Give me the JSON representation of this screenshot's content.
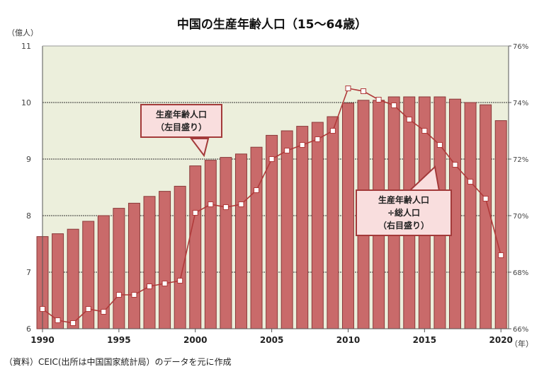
{
  "chart_data": {
    "type": "bar+line",
    "title": "中国の生産年齢人口（15～64歳）",
    "left_axis_label": "（億人）",
    "x_unit_label": "（年）",
    "source": "（資料）CEIC(出所は中国国家統計局）のデータを元に作成",
    "ylim_left": [
      6,
      11
    ],
    "yticks_left": [
      "6",
      "7",
      "8",
      "9",
      "10",
      "11"
    ],
    "ylim_right": [
      66,
      76
    ],
    "yticks_right": [
      "66%",
      "68%",
      "70%",
      "72%",
      "74%",
      "76%"
    ],
    "xticks": [
      "1990",
      "1995",
      "2000",
      "2005",
      "2010",
      "2015",
      "2020"
    ],
    "grid": true,
    "background_color": "#ecefdc",
    "categories": [
      1990,
      1991,
      1992,
      1993,
      1994,
      1995,
      1996,
      1997,
      1998,
      1999,
      2000,
      2001,
      2002,
      2003,
      2004,
      2005,
      2006,
      2007,
      2008,
      2009,
      2010,
      2011,
      2012,
      2013,
      2014,
      2015,
      2016,
      2017,
      2018,
      2019,
      2020
    ],
    "series": [
      {
        "name": "生産年齢人口（左目盛り）",
        "type": "bar",
        "axis": "left",
        "color": "#c96a6a",
        "values": [
          7.63,
          7.68,
          7.76,
          7.9,
          8.0,
          8.13,
          8.22,
          8.34,
          8.43,
          8.52,
          8.88,
          8.98,
          9.03,
          9.09,
          9.21,
          9.42,
          9.5,
          9.58,
          9.65,
          9.75,
          9.99,
          10.04,
          10.04,
          10.1,
          10.1,
          10.1,
          10.1,
          10.06,
          10.0,
          9.96,
          9.68
        ]
      },
      {
        "name": "生産年齢人口÷総人口（右目盛り）",
        "type": "line",
        "axis": "right",
        "color": "#b03a3a",
        "values": [
          66.7,
          66.3,
          66.2,
          66.7,
          66.6,
          67.2,
          67.2,
          67.5,
          67.6,
          67.7,
          70.1,
          70.4,
          70.3,
          70.4,
          70.9,
          72.0,
          72.3,
          72.5,
          72.7,
          73.0,
          74.5,
          74.4,
          74.1,
          73.9,
          73.4,
          73.0,
          72.5,
          71.8,
          71.2,
          70.6,
          68.6
        ]
      }
    ],
    "annotations": {
      "bar_label_line1": "生産年齢人口",
      "bar_label_line2": "（左目盛り）",
      "line_label_line1": "生産年齢人口",
      "line_label_line2": "÷総人口",
      "line_label_line3": "（右目盛り）"
    }
  }
}
